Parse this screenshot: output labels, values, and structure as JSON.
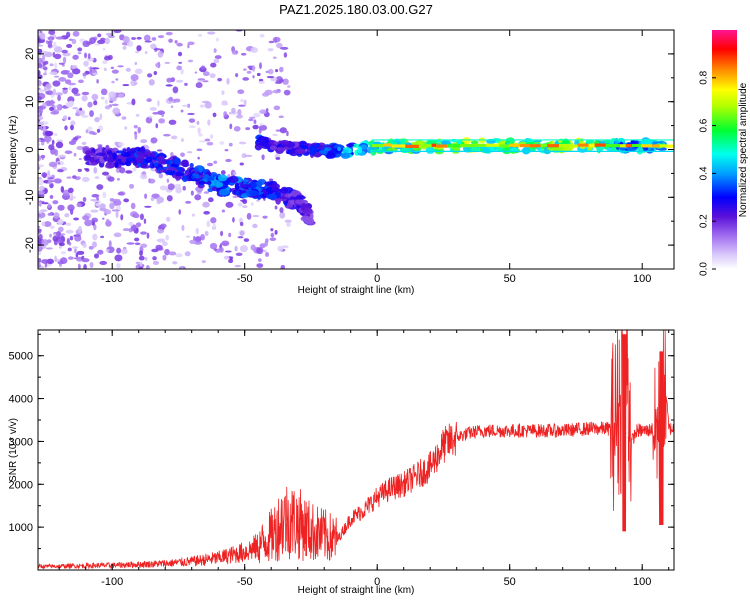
{
  "title": "PAZ1.2025.180.03.00.G27",
  "chart_data": [
    {
      "type": "heatmap",
      "panel": "spectrogram",
      "xlabel": "Height of straight line (km)",
      "ylabel": "Frequency (Hz)",
      "xlim": [
        -128,
        112
      ],
      "ylim": [
        -25,
        25
      ],
      "x_ticks": [
        -100,
        -50,
        0,
        50,
        100
      ],
      "y_ticks": [
        -20,
        -10,
        0,
        10,
        20
      ],
      "colorbar": {
        "label": "Normalized spectral amplitude",
        "range": [
          0,
          1
        ],
        "ticks": [
          0,
          0.2,
          0.4,
          0.6,
          0.8
        ],
        "colors": [
          "#ffffff",
          "#c3a6f7",
          "#7a1fe6",
          "#0000ff",
          "#00e5ff",
          "#00ff40",
          "#ffff00",
          "#ff8000",
          "#ff0000",
          "#ff1493"
        ]
      },
      "features": [
        {
          "name": "main-tone",
          "x": [
            -45,
            -35,
            -25,
            -15,
            0,
            20,
            40,
            60,
            80,
            95,
            108
          ],
          "y": [
            1.5,
            0.5,
            0,
            -0.5,
            0.5,
            0.8,
            0.8,
            0.8,
            0.8,
            0.8,
            0.8
          ],
          "amplitude": [
            0.35,
            0.3,
            0.35,
            0.45,
            0.6,
            0.75,
            0.75,
            0.7,
            0.75,
            0.5,
            0.6
          ]
        },
        {
          "name": "descending-branch",
          "x": [
            -110,
            -100,
            -90,
            -80,
            -70,
            -60,
            -50,
            -40,
            -30,
            -25
          ],
          "y": [
            -1,
            -2,
            -1.5,
            -3,
            -5,
            -7.5,
            -8,
            -8.5,
            -11,
            -14
          ],
          "amplitude": [
            0.25,
            0.3,
            0.35,
            0.35,
            0.35,
            0.45,
            0.4,
            0.35,
            0.3,
            0.25
          ]
        }
      ]
    },
    {
      "type": "line",
      "panel": "snr",
      "xlabel": "Height of straight line (km)",
      "ylabel": "SNR (10 * v/v)",
      "xlim": [
        -128,
        112
      ],
      "ylim": [
        0,
        5600
      ],
      "x_ticks": [
        -100,
        -50,
        0,
        50,
        100
      ],
      "y_ticks": [
        1000,
        2000,
        3000,
        4000,
        5000
      ],
      "color": "#ee2222",
      "series": [
        {
          "x": [
            -128,
            -110,
            -100,
            -90,
            -80,
            -70,
            -60,
            -55,
            -50,
            -45,
            -40,
            -35,
            -30,
            -25,
            -20,
            -15,
            -10,
            -5,
            0,
            5,
            10,
            15,
            20,
            25,
            30,
            35,
            40,
            50,
            60,
            70,
            80,
            88,
            90,
            92,
            94,
            96,
            98,
            100,
            102,
            104,
            106,
            108,
            110,
            112
          ],
          "y": [
            80,
            100,
            110,
            130,
            150,
            200,
            280,
            350,
            420,
            550,
            800,
            1200,
            1100,
            900,
            800,
            700,
            1200,
            1400,
            1700,
            1900,
            2000,
            2200,
            2400,
            2900,
            3100,
            3200,
            3250,
            3250,
            3250,
            3250,
            3300,
            3300,
            3500,
            4000,
            5000,
            3000,
            3250,
            3250,
            3250,
            3300,
            3250,
            5000,
            3300,
            3300
          ]
        }
      ]
    }
  ]
}
